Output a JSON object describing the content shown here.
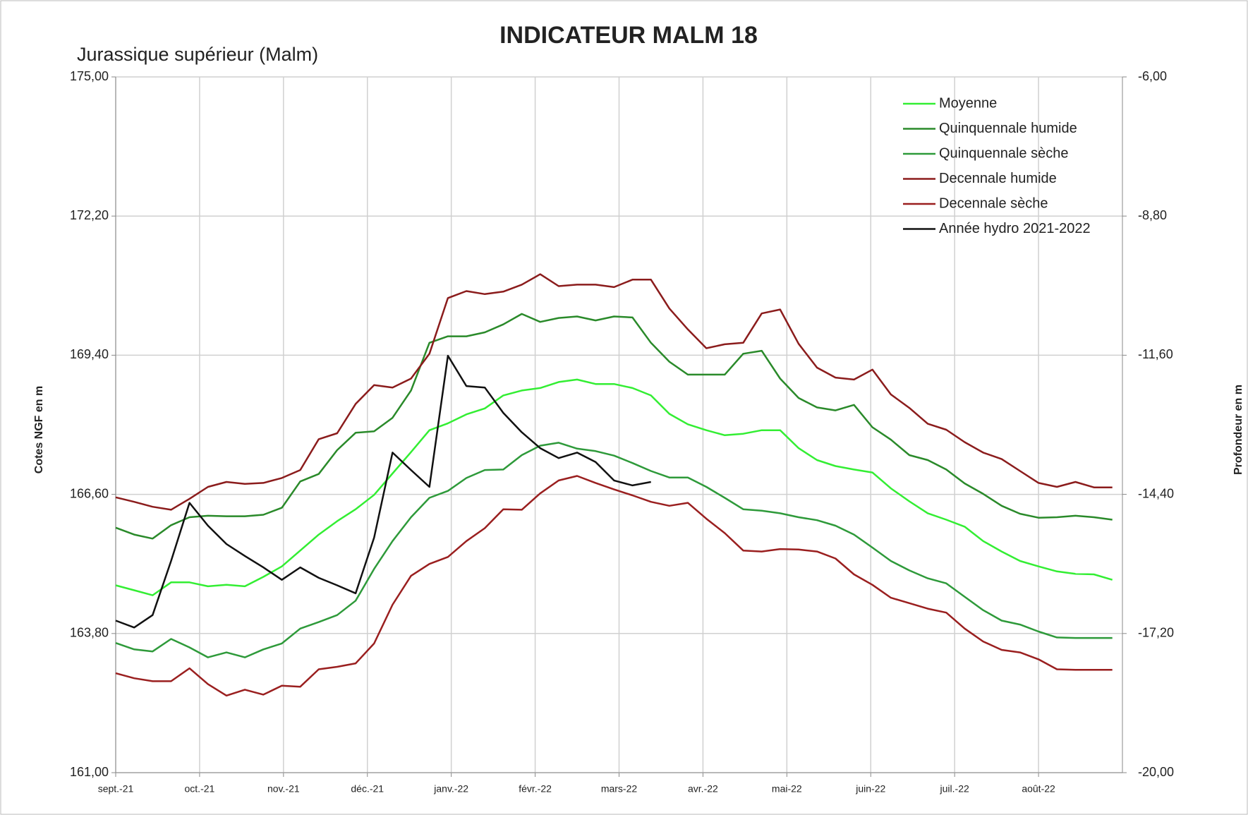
{
  "chart_data": {
    "type": "line",
    "title": "INDICATEUR MALM 18",
    "subtitle": "Jurassique supérieur (Malm)",
    "y_label": "Cotes NGF en m",
    "y2_label": "Profondeur en m",
    "x": [
      0,
      0.22,
      0.44,
      0.66,
      0.88,
      1.1,
      1.32,
      1.54,
      1.76,
      1.98,
      2.2,
      2.42,
      2.64,
      2.86,
      3.08,
      3.3,
      3.52,
      3.74,
      3.96,
      4.18,
      4.4,
      4.62,
      4.84,
      5.06,
      5.28,
      5.5,
      5.72,
      5.94,
      6.16,
      6.38,
      6.6,
      6.82,
      7.04,
      7.26,
      7.48,
      7.7,
      7.92,
      8.14,
      8.36,
      8.58,
      8.8,
      9.02,
      9.24,
      9.46,
      9.68,
      9.9,
      10.12,
      10.34,
      10.56,
      10.78,
      11,
      11.22,
      11.44,
      11.66,
      11.88
    ],
    "xlim": [
      0,
      12
    ],
    "xticks": [
      {
        "value": 0,
        "label": "sept.-21"
      },
      {
        "value": 1,
        "label": "oct.-21"
      },
      {
        "value": 2,
        "label": "nov.-21"
      },
      {
        "value": 3,
        "label": "déc.-21"
      },
      {
        "value": 4,
        "label": "janv.-22"
      },
      {
        "value": 5,
        "label": "févr.-22"
      },
      {
        "value": 6,
        "label": "mars-22"
      },
      {
        "value": 7,
        "label": "avr.-22"
      },
      {
        "value": 8,
        "label": "mai-22"
      },
      {
        "value": 9,
        "label": "juin-22"
      },
      {
        "value": 10,
        "label": "juil.-22"
      },
      {
        "value": 11,
        "label": "août-22"
      }
    ],
    "ylim": [
      161,
      175
    ],
    "yticks": [
      {
        "value": 161,
        "label": "161,00"
      },
      {
        "value": 163.8,
        "label": "163,80"
      },
      {
        "value": 166.6,
        "label": "166,60"
      },
      {
        "value": 169.4,
        "label": "169,40"
      },
      {
        "value": 172.2,
        "label": "172,20"
      },
      {
        "value": 175,
        "label": "175,00"
      }
    ],
    "y2lim": [
      -20,
      -6
    ],
    "y2ticks": [
      {
        "value": -20,
        "label": "-20,00"
      },
      {
        "value": -17.2,
        "label": "-17,20"
      },
      {
        "value": -14.4,
        "label": "-14,40"
      },
      {
        "value": -11.6,
        "label": "-11,60"
      },
      {
        "value": -8.8,
        "label": "-8,80"
      },
      {
        "value": -6,
        "label": "-6,00"
      }
    ],
    "grid": true,
    "legend": "upper right",
    "series": [
      {
        "name": "Moyenne",
        "color": "#33ee33",
        "values": [
          164.77,
          164.67,
          164.57,
          164.83,
          164.83,
          164.75,
          164.78,
          164.75,
          164.94,
          165.15,
          165.47,
          165.79,
          166.06,
          166.3,
          166.59,
          167.02,
          167.45,
          167.89,
          168.03,
          168.21,
          168.33,
          168.59,
          168.69,
          168.74,
          168.86,
          168.91,
          168.82,
          168.82,
          168.74,
          168.59,
          168.22,
          168.01,
          167.89,
          167.79,
          167.82,
          167.89,
          167.89,
          167.53,
          167.29,
          167.17,
          167.1,
          167.04,
          166.72,
          166.46,
          166.22,
          166.09,
          165.95,
          165.66,
          165.45,
          165.26,
          165.15,
          165.05,
          165.0,
          164.99,
          164.88
        ]
      },
      {
        "name": "Quinquennale humide",
        "color": "#2a8a2a",
        "values": [
          165.93,
          165.79,
          165.71,
          165.98,
          166.14,
          166.17,
          166.16,
          166.16,
          166.19,
          166.33,
          166.86,
          167.01,
          167.49,
          167.84,
          167.87,
          168.14,
          168.69,
          169.65,
          169.78,
          169.78,
          169.86,
          170.02,
          170.23,
          170.07,
          170.15,
          170.18,
          170.1,
          170.18,
          170.16,
          169.65,
          169.27,
          169.01,
          169.01,
          169.01,
          169.43,
          169.49,
          168.93,
          168.54,
          168.35,
          168.29,
          168.4,
          167.95,
          167.7,
          167.39,
          167.29,
          167.1,
          166.82,
          166.61,
          166.37,
          166.21,
          166.13,
          166.14,
          166.17,
          166.14,
          166.09
        ]
      },
      {
        "name": "Quinquennale sèche",
        "color": "#2e9a3a",
        "values": [
          163.61,
          163.48,
          163.44,
          163.69,
          163.52,
          163.32,
          163.42,
          163.32,
          163.48,
          163.6,
          163.9,
          164.03,
          164.17,
          164.46,
          165.1,
          165.66,
          166.14,
          166.53,
          166.67,
          166.93,
          167.09,
          167.1,
          167.39,
          167.58,
          167.64,
          167.52,
          167.47,
          167.38,
          167.23,
          167.07,
          166.94,
          166.94,
          166.75,
          166.53,
          166.3,
          166.27,
          166.22,
          166.14,
          166.08,
          165.97,
          165.79,
          165.53,
          165.26,
          165.07,
          164.91,
          164.81,
          164.54,
          164.27,
          164.06,
          163.98,
          163.84,
          163.72,
          163.71,
          163.71,
          163.71
        ]
      },
      {
        "name": "Decennale humide",
        "color": "#8b1c1c",
        "values": [
          166.54,
          166.45,
          166.35,
          166.29,
          166.51,
          166.75,
          166.85,
          166.81,
          166.83,
          166.93,
          167.09,
          167.71,
          167.83,
          168.42,
          168.8,
          168.75,
          168.93,
          169.43,
          170.55,
          170.69,
          170.63,
          170.68,
          170.82,
          171.03,
          170.79,
          170.82,
          170.82,
          170.77,
          170.92,
          170.92,
          170.34,
          169.92,
          169.54,
          169.62,
          169.65,
          170.24,
          170.32,
          169.63,
          169.15,
          168.95,
          168.91,
          169.11,
          168.61,
          168.34,
          168.02,
          167.9,
          167.65,
          167.44,
          167.31,
          167.07,
          166.83,
          166.75,
          166.85,
          166.74,
          166.74
        ]
      },
      {
        "name": "Decennale sèche",
        "color": "#9a1f1f",
        "values": [
          163.0,
          162.9,
          162.84,
          162.84,
          163.1,
          162.78,
          162.55,
          162.67,
          162.57,
          162.75,
          162.73,
          163.08,
          163.13,
          163.2,
          163.6,
          164.38,
          164.96,
          165.2,
          165.34,
          165.66,
          165.92,
          166.3,
          166.29,
          166.62,
          166.88,
          166.97,
          166.83,
          166.7,
          166.58,
          166.45,
          166.37,
          166.43,
          166.11,
          165.82,
          165.47,
          165.45,
          165.5,
          165.49,
          165.45,
          165.31,
          164.99,
          164.78,
          164.52,
          164.41,
          164.3,
          164.22,
          163.9,
          163.64,
          163.47,
          163.42,
          163.28,
          163.08,
          163.07,
          163.07,
          163.07
        ]
      },
      {
        "name": "Année hydro 2021-2022",
        "color": "#111111",
        "values": [
          164.06,
          163.92,
          164.17,
          165.26,
          166.43,
          165.97,
          165.6,
          165.36,
          165.13,
          164.88,
          165.13,
          164.92,
          164.77,
          164.61,
          165.73,
          167.44,
          167.09,
          166.75,
          169.39,
          168.78,
          168.75,
          168.24,
          167.85,
          167.53,
          167.33,
          167.44,
          167.25,
          166.88,
          166.78,
          166.85,
          null,
          null,
          null,
          null,
          null,
          null,
          null,
          null,
          null,
          null,
          null,
          null,
          null,
          null,
          null,
          null,
          null,
          null,
          null,
          null,
          null,
          null,
          null,
          null,
          null
        ]
      }
    ]
  }
}
